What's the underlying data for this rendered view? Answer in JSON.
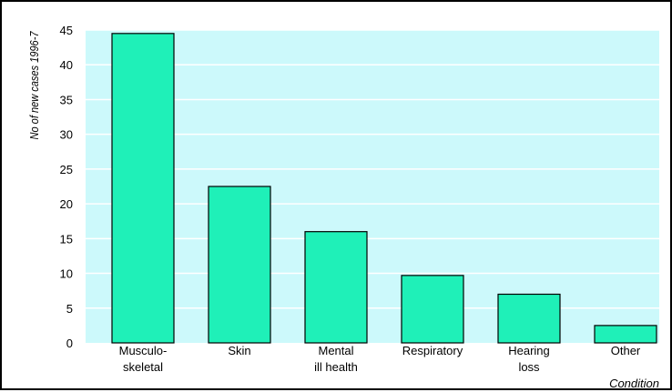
{
  "chart_data": {
    "type": "bar",
    "categories": [
      [
        "Musculo-",
        "skeletal"
      ],
      [
        "Skin"
      ],
      [
        "Mental",
        "ill health"
      ],
      [
        "Respiratory"
      ],
      [
        "Hearing",
        "loss"
      ],
      [
        "Other"
      ]
    ],
    "values": [
      44.5,
      22.5,
      16,
      9.7,
      7,
      2.5
    ],
    "xlabel": "Condition",
    "ylabel": "No of new cases 1996-7",
    "ylim": [
      0,
      45
    ],
    "yticks": [
      0,
      5,
      10,
      15,
      20,
      25,
      30,
      35,
      40,
      45
    ],
    "grid": true,
    "colors": {
      "plot_background": "#ccf9fb",
      "bar_fill": "#1ff0b8",
      "bar_stroke": "#000000",
      "grid": "#ffffff"
    }
  }
}
